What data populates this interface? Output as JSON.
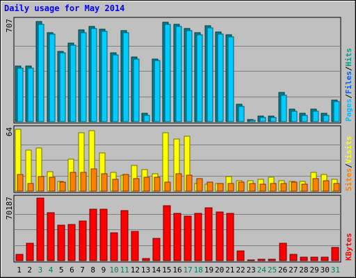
{
  "chart_data": {
    "type": "bar",
    "title": "Daily usage for May 2014",
    "categories": [
      "1",
      "2",
      "3",
      "4",
      "5",
      "6",
      "7",
      "8",
      "9",
      "10",
      "11",
      "12",
      "13",
      "14",
      "15",
      "16",
      "17",
      "18",
      "19",
      "20",
      "21",
      "22",
      "23",
      "24",
      "25",
      "26",
      "27",
      "28",
      "29",
      "30",
      "31"
    ],
    "weekend_days": [
      "3",
      "4",
      "10",
      "11",
      "17",
      "18",
      "24",
      "25",
      "31"
    ],
    "panels": [
      {
        "name": "requests",
        "ymax_label": "707",
        "ymax": 707,
        "legend": [
          {
            "text": "Pages",
            "color": "#00c0ff"
          },
          {
            "text": "/",
            "color": "#000000"
          },
          {
            "text": "Files",
            "color": "#0060ff"
          },
          {
            "text": "/",
            "color": "#000000"
          },
          {
            "text": "Hits",
            "color": "#00a080"
          }
        ],
        "series": [
          {
            "name": "Hits",
            "color": "#008090",
            "values": [
              387,
              387,
              699,
              622,
              489,
              548,
              638,
              661,
              643,
              480,
              636,
              451,
              57,
              437,
              692,
              677,
              649,
              620,
              667,
              623,
              605,
              119,
              16,
              39,
              39,
              205,
              85,
              57,
              85,
              57,
              150
            ]
          },
          {
            "name": "Files",
            "color": "#00ccff",
            "values": [
              374,
              374,
              680,
              609,
              477,
              535,
              620,
              647,
              629,
              467,
              618,
              438,
              44,
              424,
              679,
              663,
              635,
              607,
              653,
              609,
              593,
              107,
              10,
              30,
              30,
              186,
              72,
              44,
              72,
              44,
              139
            ]
          }
        ]
      },
      {
        "name": "visitors",
        "ymax_label": "64",
        "ymax": 64,
        "legend": [
          {
            "text": "Sites",
            "color": "#ff8000"
          },
          {
            "text": "/",
            "color": "#000000"
          },
          {
            "text": "Visits",
            "color": "#ffff00"
          }
        ],
        "series": [
          {
            "name": "Visits",
            "color": "#ffff00",
            "values": [
              63,
              42,
              44,
              20,
              10,
              33,
              60,
              62,
              39,
              19,
              16,
              26,
              22,
              18,
              60,
              53,
              56,
              8,
              7,
              8,
              15,
              11,
              11,
              12,
              14,
              11,
              10,
              10,
              19,
              17,
              12
            ]
          },
          {
            "name": "Sites",
            "color": "#ff8000",
            "values": [
              17,
              8,
              15,
              14,
              9,
              19,
              19,
              23,
              18,
              12,
              17,
              13,
              14,
              14,
              9,
              18,
              16,
              13,
              9,
              8,
              8,
              9,
              8,
              7,
              8,
              8,
              9,
              7,
              13,
              11,
              8
            ]
          }
        ]
      },
      {
        "name": "kbytes",
        "ymax_label": "70187",
        "ymax": 70187,
        "legend": [
          {
            "text": "KBytes",
            "color": "#ff0000"
          }
        ],
        "series": [
          {
            "name": "KBytes",
            "color": "#ff0000",
            "values": [
              7200,
              19600,
              70187,
              54100,
              39500,
              40400,
              44100,
              57800,
              57800,
              31000,
              56100,
              32700,
              2500,
              24800,
              61300,
              53400,
              49800,
              53400,
              59200,
              54600,
              53400,
              11000,
              800,
              1200,
              1800,
              19600,
              7000,
              3800,
              3800,
              3800,
              15200
            ]
          }
        ]
      }
    ]
  }
}
